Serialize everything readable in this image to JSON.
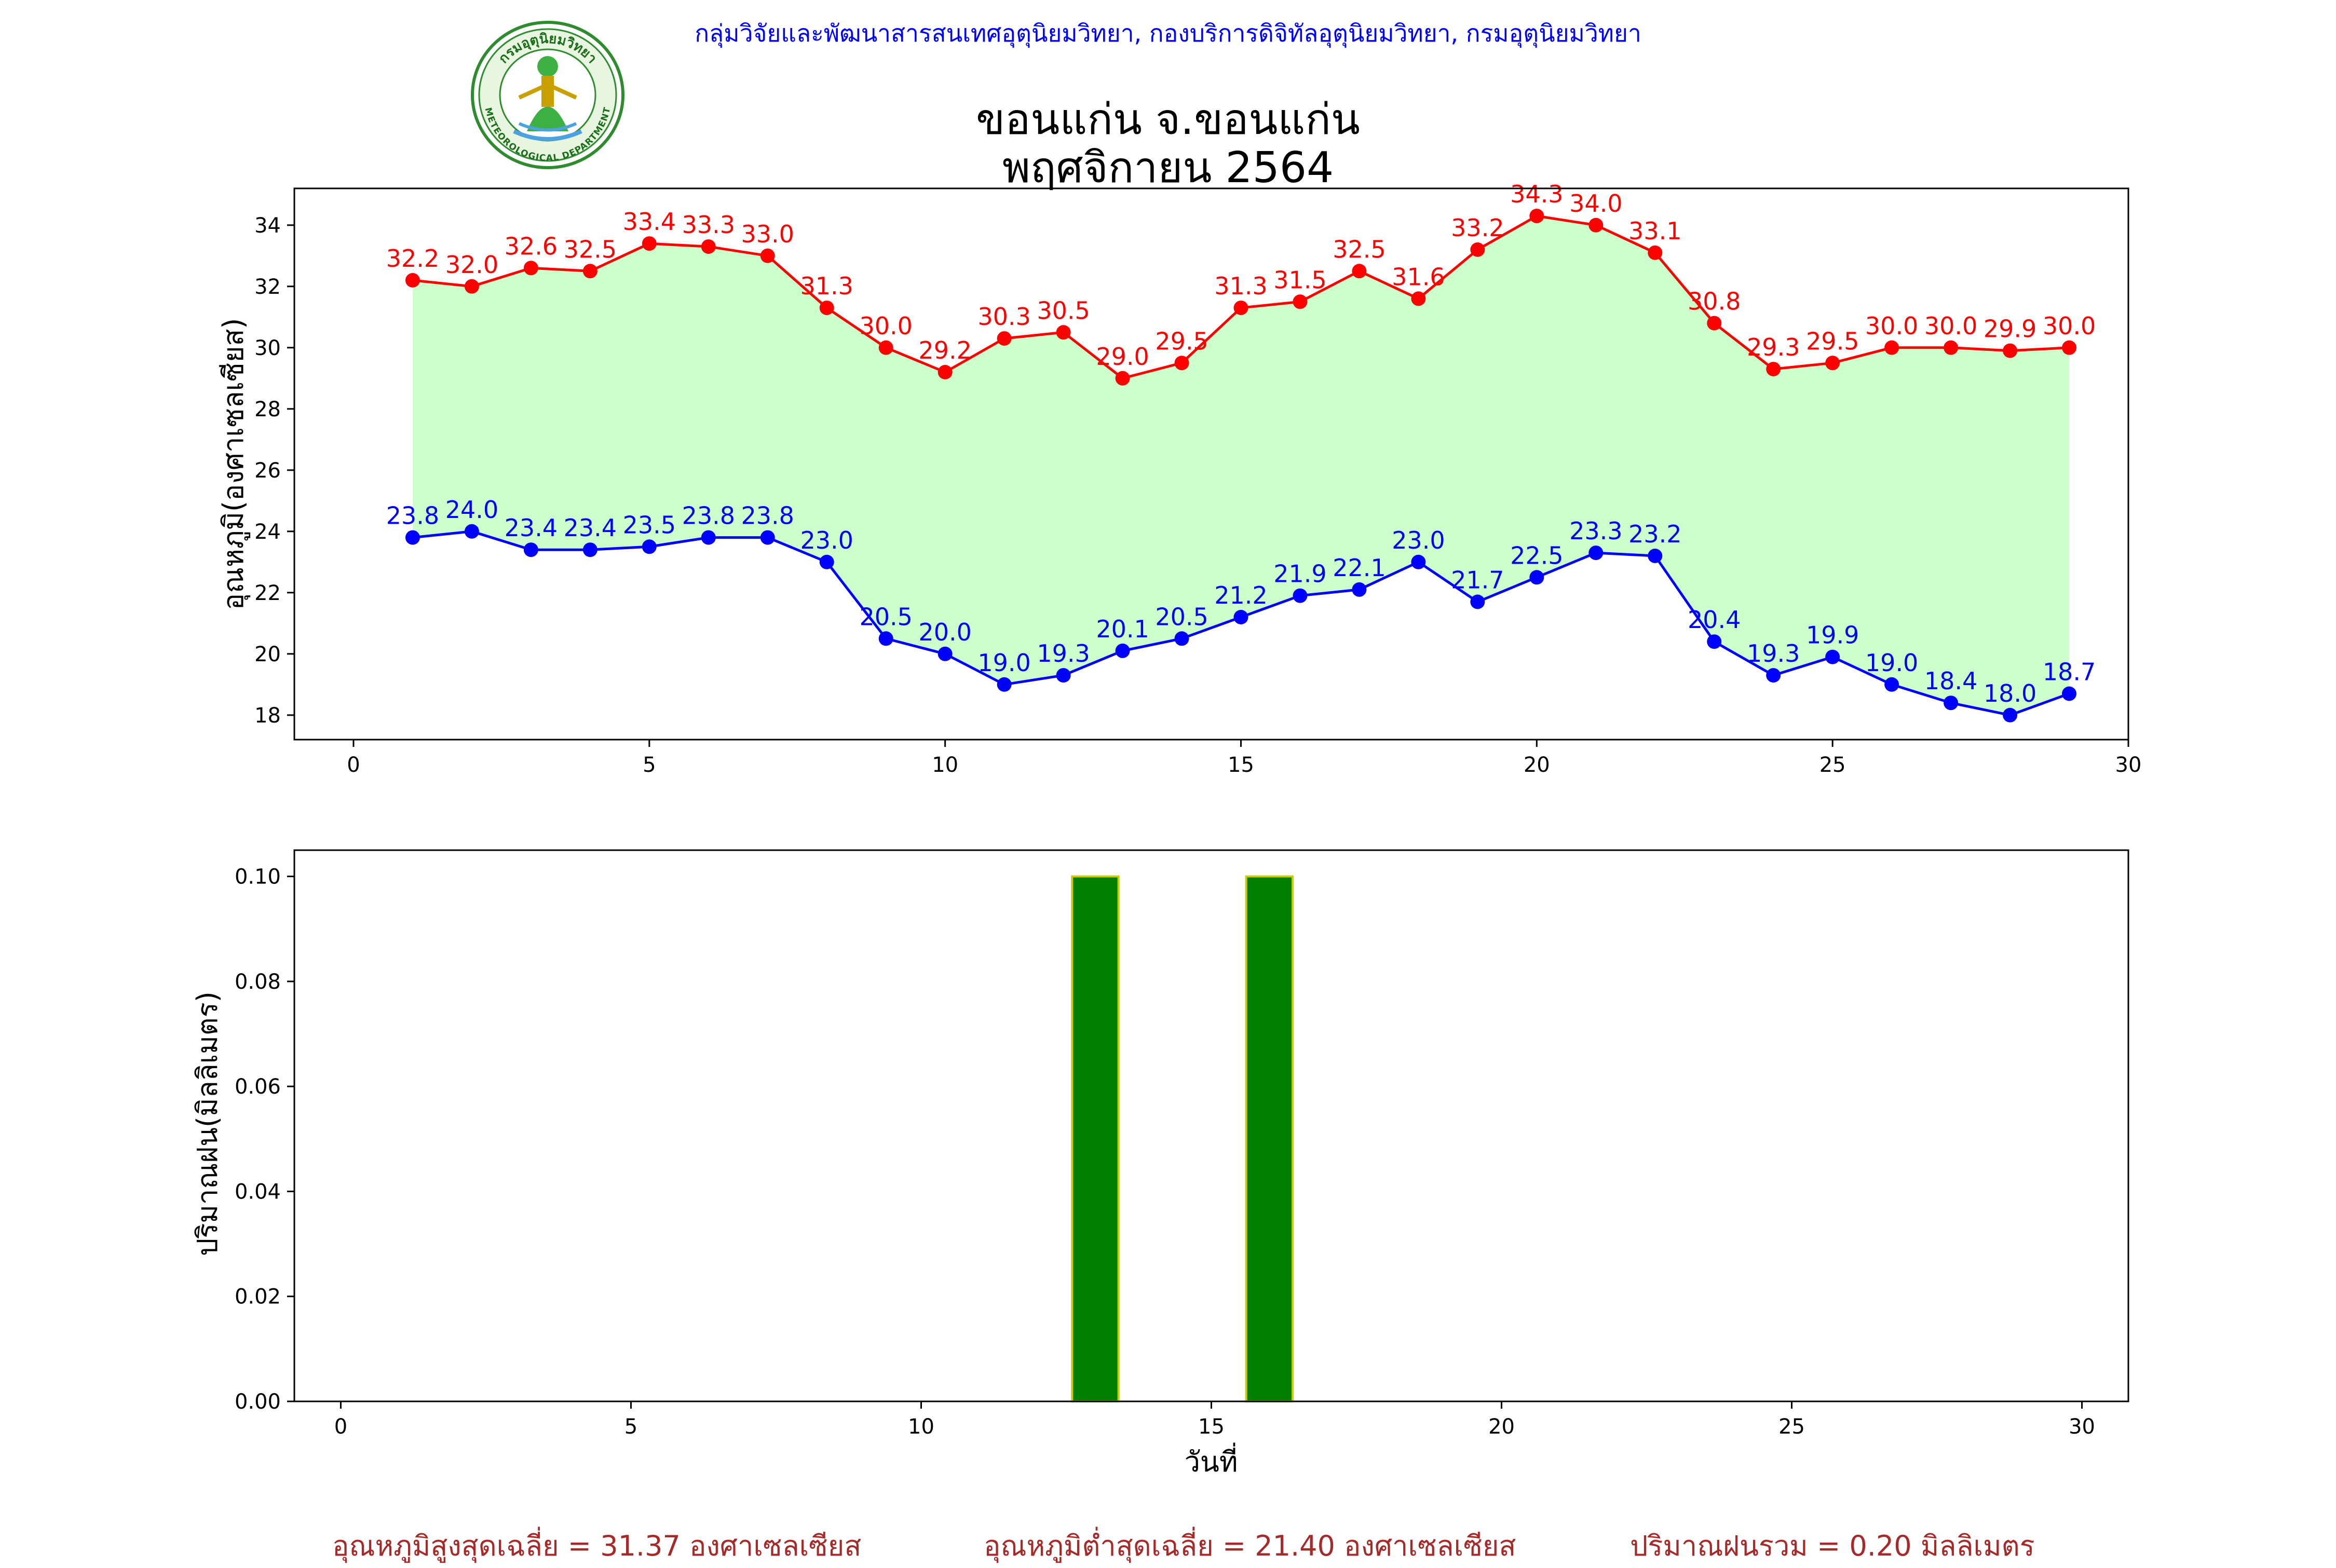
{
  "header": {
    "organization": "กลุ่มวิจัยและพัฒนาสารสนเทศอุตุนิยมวิทยา, กองบริการดิจิทัลอุตุนิยมวิทยา, กรมอุตุนิยมวิทยา",
    "title_line1": "ขอนแก่น จ.ขอนแก่น",
    "title_line2": "พฤศจิกายน 2564",
    "logo": {
      "text_top": "กรมอุตุนิยมวิทยา",
      "text_bottom": "METEOROLOGICAL DEPARTMENT"
    }
  },
  "colors": {
    "max_line": "#ff0000",
    "min_line": "#0000ff",
    "fill": "#ccffcc",
    "rain_bar": "#008000",
    "rain_edge": "#cccc00",
    "footer": "#a52a2a"
  },
  "chart_data": [
    {
      "type": "line",
      "ylabel": "อุณหภูมิ(องศาเซลเซียส)",
      "xlabel": "",
      "xlim": [
        -1,
        30
      ],
      "ylim": [
        17.2,
        35.2
      ],
      "xticks": [
        0,
        5,
        10,
        15,
        20,
        25,
        30
      ],
      "yticks": [
        18,
        20,
        22,
        24,
        26,
        28,
        30,
        32,
        34
      ],
      "grid": false,
      "fill_between": true,
      "x": [
        1,
        2,
        3,
        4,
        5,
        6,
        7,
        8,
        9,
        10,
        11,
        12,
        13,
        14,
        15,
        16,
        17,
        18,
        19,
        20,
        21,
        22,
        23,
        24,
        25,
        26,
        27,
        28,
        29
      ],
      "series": [
        {
          "values": [
            32.2,
            32.0,
            32.6,
            32.5,
            33.4,
            33.3,
            33.0,
            31.3,
            30.0,
            29.2,
            30.3,
            30.5,
            29.0,
            29.5,
            31.3,
            31.5,
            32.5,
            31.6,
            33.2,
            34.3,
            34.0,
            33.1,
            30.8,
            29.3,
            29.5,
            30.0,
            30.0,
            29.9,
            30.0
          ],
          "labels": [
            "32.2",
            "32.0",
            "32.6",
            "32.5",
            "33.4",
            "33.3",
            "33.0",
            "31.3",
            "30.0",
            "29.2",
            "30.3",
            "30.5",
            "29.0",
            "29.5",
            "31.3",
            "31.5",
            "32.5",
            "31.6",
            "33.2",
            "34.3",
            "34.0",
            "33.1",
            "30.8",
            "29.3",
            "29.5",
            "30.0",
            "30.0",
            "29.9",
            "30.0"
          ]
        },
        {
          "values": [
            23.8,
            24.0,
            23.4,
            23.4,
            23.5,
            23.8,
            23.8,
            23.0,
            20.5,
            20.0,
            19.0,
            19.3,
            20.1,
            20.5,
            21.2,
            21.9,
            22.1,
            23.0,
            21.7,
            22.5,
            23.3,
            23.2,
            20.4,
            19.3,
            19.9,
            19.0,
            18.4,
            18.0,
            18.7
          ],
          "labels": [
            "23.8",
            "24.0",
            "23.4",
            "23.4",
            "23.5",
            "23.8",
            "23.8",
            "23.0",
            "20.5",
            "20.0",
            "19.0",
            "19.3",
            "20.1",
            "20.5",
            "21.2",
            "21.9",
            "22.1",
            "23.0",
            "21.7",
            "22.5",
            "23.3",
            "23.2",
            "20.4",
            "19.3",
            "19.9",
            "19.0",
            "18.4",
            "18.0",
            "18.7"
          ]
        }
      ]
    },
    {
      "type": "bar",
      "ylabel": "ปริมาณฝน(มิลลิเมตร)",
      "xlabel": "วันที่",
      "xlim": [
        -0.8,
        30.8
      ],
      "ylim": [
        0,
        0.105
      ],
      "xticks": [
        0,
        5,
        10,
        15,
        20,
        25,
        30
      ],
      "yticks": [
        "0.00",
        "0.02",
        "0.04",
        "0.06",
        "0.08",
        "0.10"
      ],
      "grid": false,
      "x": [
        1,
        2,
        3,
        4,
        5,
        6,
        7,
        8,
        9,
        10,
        11,
        12,
        13,
        14,
        15,
        16,
        17,
        18,
        19,
        20,
        21,
        22,
        23,
        24,
        25,
        26,
        27,
        28,
        29,
        30
      ],
      "values": [
        0,
        0,
        0,
        0,
        0,
        0,
        0,
        0,
        0,
        0,
        0,
        0,
        0.1,
        0,
        0,
        0.1,
        0,
        0,
        0,
        0,
        0,
        0,
        0,
        0,
        0,
        0,
        0,
        0,
        0,
        0
      ]
    }
  ],
  "footer": {
    "avg_max": "อุณหภูมิสูงสุดเฉลี่ย = 31.37 องศาเซลเซียส",
    "avg_min": "อุณหภูมิต่ำสุดเฉลี่ย = 21.40 องศาเซลเซียส",
    "total_rain": "ปริมาณฝนรวม = 0.20 มิลลิเมตร"
  }
}
